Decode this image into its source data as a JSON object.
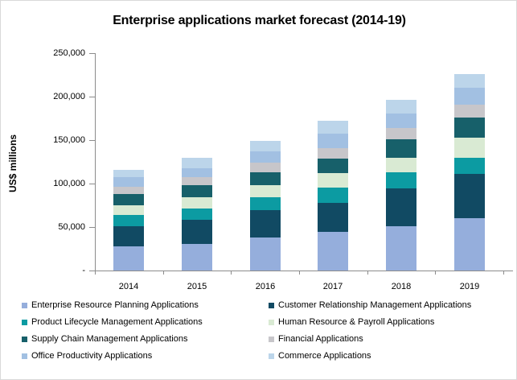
{
  "chart_data": {
    "type": "bar",
    "stacked": true,
    "title": "Enterprise applications market forecast (2014-19)",
    "ylabel": "US$ millions",
    "xlabel": "",
    "categories": [
      "2014",
      "2015",
      "2016",
      "2017",
      "2018",
      "2019"
    ],
    "ylim": [
      0,
      250000
    ],
    "ytick_values": [
      0,
      50000,
      100000,
      150000,
      200000,
      250000
    ],
    "ytick_labels": [
      "-",
      "50,000",
      "100,000",
      "150,000",
      "200,000",
      "250,000"
    ],
    "grid": false,
    "legend_position": "bottom",
    "series": [
      {
        "name": "Enterprise Resource Planning Applications",
        "color": "#95AEDC",
        "values": [
          28000,
          31000,
          38000,
          44000,
          51000,
          60000
        ]
      },
      {
        "name": "Customer Relationship Management Applications",
        "color": "#114A63",
        "values": [
          23000,
          27000,
          31000,
          34000,
          43000,
          51000
        ]
      },
      {
        "name": "Product Lifecycle Management Applications",
        "color": "#0C9BA2",
        "values": [
          13000,
          13000,
          15000,
          17000,
          19000,
          19000
        ]
      },
      {
        "name": "Human Resource & Payroll Applications",
        "color": "#D9EAD3",
        "values": [
          11000,
          13000,
          14000,
          17000,
          17000,
          23000
        ]
      },
      {
        "name": "Supply Chain Management Applications",
        "color": "#17606A",
        "values": [
          13000,
          14000,
          15000,
          17000,
          21000,
          23000
        ]
      },
      {
        "name": "Financial Applications",
        "color": "#C7C6CA",
        "values": [
          8000,
          9000,
          11000,
          12000,
          13000,
          15000
        ]
      },
      {
        "name": "Office Productivity Applications",
        "color": "#A2C0E2",
        "values": [
          11000,
          11000,
          13000,
          16000,
          17000,
          19000
        ]
      },
      {
        "name": "Commerce Applications",
        "color": "#BCD5EA",
        "values": [
          9000,
          12000,
          12000,
          15000,
          15000,
          16000
        ]
      }
    ],
    "totals": [
      116000,
      130000,
      149000,
      172000,
      196000,
      226000
    ]
  }
}
